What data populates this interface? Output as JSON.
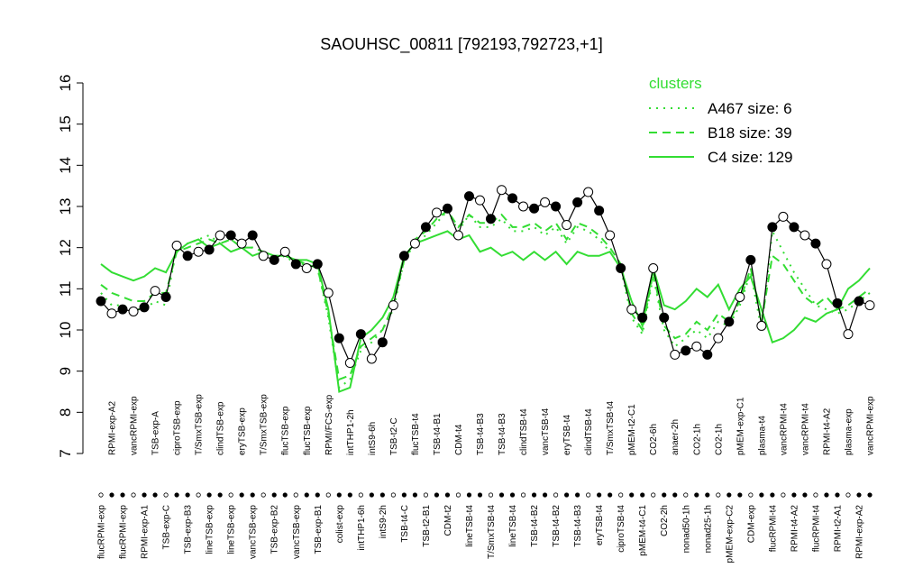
{
  "chart_data": {
    "type": "line",
    "title": "SAOUHSC_00811 [792193,792723,+1]",
    "categories": [
      "flucRPMI-exp",
      "RPMI-exp-A2",
      "flucRPMI-exp",
      "vancRPMI-exp",
      "RPMI-exp-A1",
      "TSB-exp-A",
      "TSB-exp-C",
      "ciproTSB-exp",
      "TSB-exp-B3",
      "T/SmxTSB-exp",
      "lineTSB-exp",
      "clindTSB-exp",
      "lineTSB-exp",
      "eryTSB-exp",
      "vancTSB-exp",
      "T/SmxTSB-exp",
      "TSB-exp-B2",
      "flucTSB-exp",
      "vancTSB-exp",
      "flucTSB-exp",
      "TSB-exp-B1",
      "RPMI/FCS-exp",
      "colist-exp",
      "intTHP1-2h",
      "intTHP1-6h",
      "intS9-6h",
      "intS9-2h",
      "TSB-t2-C",
      "TSB-t4-C",
      "flucTSB-t4",
      "TSB-t2-B1",
      "TSB-t4-B1",
      "CDM-t2",
      "CDM-t4",
      "lineTSB-t4",
      "TSB-t4-B3",
      "T/SmxTSB-t4",
      "TSB-t4-B3",
      "lineTSB-t4",
      "clindTSB-t4",
      "TSB-t4-B2",
      "vancTSB-t4",
      "TSB-t4-B2",
      "eryTSB-t4",
      "TSB-t4-B3",
      "clindTSB-t4",
      "eryTSB-t4",
      "T/SmxTSB-t4",
      "ciproTSB-t4",
      "pMEM-t2-C1",
      "pMEM-t4-C1",
      "CO2-6h",
      "CO2-2h",
      "anaer-2h",
      "nonad50-1h",
      "CO2-1h",
      "nonad25-1h",
      "CO2-1h",
      "pMEM-exp-C2",
      "pMEM-exp-C1",
      "CDM-exp",
      "plasma-t4",
      "flucRPMI-t4",
      "vancRPMI-t4",
      "RPMI-t4-A2",
      "vancRPMI-t4",
      "flucRPMI-t4",
      "RPMI-t4-A2",
      "RPMI-t2-A1",
      "plasma-exp",
      "RPMI-exp-A2",
      "vancRPMI-exp"
    ],
    "series": [
      {
        "name": "SAOUHSC_00811",
        "color": "#000000",
        "values": [
          10.7,
          10.4,
          10.5,
          10.45,
          10.55,
          10.95,
          10.8,
          12.05,
          11.8,
          11.9,
          11.95,
          12.3,
          12.3,
          12.1,
          12.3,
          11.8,
          11.7,
          11.9,
          11.6,
          11.5,
          11.6,
          10.9,
          9.8,
          9.2,
          9.9,
          9.3,
          9.7,
          10.6,
          11.8,
          12.1,
          12.5,
          12.85,
          12.95,
          12.3,
          13.25,
          13.15,
          12.7,
          13.4,
          13.2,
          13.0,
          12.95,
          13.1,
          13.0,
          12.55,
          13.1,
          13.35,
          12.9,
          12.3,
          11.5,
          10.5,
          10.3,
          11.5,
          10.3,
          9.4,
          9.5,
          9.6,
          9.4,
          9.8,
          10.2,
          10.8,
          11.7,
          10.1,
          12.5,
          12.75,
          12.5,
          12.3,
          12.1,
          11.6,
          10.65,
          9.9,
          10.7,
          10.6
        ]
      },
      {
        "name": "A467 size: 6",
        "color": "#33dd33",
        "dash": "dotted",
        "values": [
          10.9,
          10.6,
          10.6,
          10.5,
          10.5,
          10.7,
          10.6,
          12.0,
          12.1,
          12.2,
          12.3,
          12.1,
          12.2,
          12.0,
          12.0,
          11.9,
          11.7,
          11.8,
          11.6,
          11.6,
          11.5,
          10.3,
          8.6,
          8.8,
          9.5,
          9.7,
          10.0,
          10.5,
          11.7,
          12.1,
          12.3,
          12.6,
          12.9,
          12.4,
          12.8,
          12.5,
          12.5,
          12.7,
          12.4,
          12.4,
          12.5,
          12.3,
          12.5,
          12.1,
          12.5,
          12.4,
          12.2,
          11.9,
          11.5,
          10.3,
          9.9,
          11.3,
          10.0,
          9.6,
          9.8,
          10.0,
          9.8,
          10.2,
          10.1,
          10.6,
          11.4,
          10.0,
          12.4,
          11.9,
          11.4,
          11.0,
          10.6,
          10.5,
          10.4,
          10.5,
          10.7,
          10.9
        ]
      },
      {
        "name": "B18 size: 39",
        "color": "#33dd33",
        "dash": "dashed",
        "values": [
          11.1,
          10.9,
          10.8,
          10.7,
          10.7,
          10.9,
          10.9,
          11.9,
          12.0,
          12.1,
          12.2,
          12.1,
          12.2,
          12.0,
          12.0,
          11.9,
          11.8,
          11.8,
          11.7,
          11.6,
          11.5,
          10.4,
          8.8,
          8.9,
          9.6,
          9.8,
          10.0,
          10.6,
          11.7,
          12.2,
          12.4,
          12.7,
          12.9,
          12.5,
          12.8,
          12.6,
          12.6,
          12.8,
          12.5,
          12.5,
          12.6,
          12.4,
          12.6,
          12.2,
          12.6,
          12.5,
          12.3,
          12.0,
          11.6,
          10.4,
          10.0,
          11.4,
          10.1,
          9.8,
          9.9,
          10.2,
          10.0,
          10.4,
          10.2,
          10.7,
          11.5,
          10.2,
          11.8,
          11.6,
          11.2,
          10.8,
          10.6,
          10.8,
          10.5,
          10.6,
          10.8,
          11.0
        ]
      },
      {
        "name": "C4 size: 129",
        "color": "#33dd33",
        "dash": "solid",
        "values": [
          11.6,
          11.4,
          11.3,
          11.2,
          11.3,
          11.5,
          11.4,
          11.9,
          12.1,
          12.2,
          12.0,
          12.1,
          11.9,
          12.0,
          11.8,
          11.9,
          11.8,
          11.8,
          11.7,
          11.7,
          11.6,
          10.5,
          8.5,
          8.6,
          9.8,
          10.0,
          10.3,
          10.8,
          11.8,
          12.1,
          12.2,
          12.3,
          12.4,
          12.2,
          12.3,
          11.9,
          12.0,
          11.8,
          11.9,
          11.7,
          11.9,
          11.7,
          11.9,
          11.6,
          11.9,
          11.8,
          11.8,
          11.9,
          11.5,
          10.7,
          10.1,
          11.5,
          10.6,
          10.5,
          10.7,
          11.0,
          10.8,
          11.1,
          10.5,
          11.0,
          11.3,
          10.5,
          9.7,
          9.8,
          10.0,
          10.3,
          10.2,
          10.4,
          10.5,
          11.0,
          11.2,
          11.5
        ]
      }
    ],
    "legend_title": "clusters",
    "legend": "topright",
    "ylim": [
      7,
      16
    ],
    "yticks": [
      7,
      8,
      9,
      10,
      11,
      12,
      13,
      14,
      15,
      16
    ]
  }
}
